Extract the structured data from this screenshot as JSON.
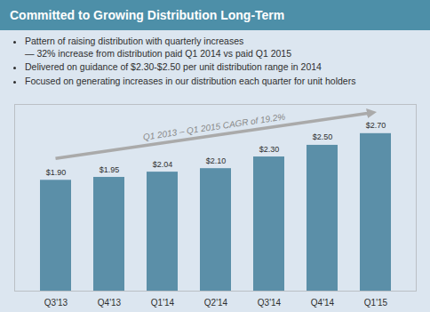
{
  "chart_data": {
    "type": "bar",
    "title": "Committed to Growing Distribution Long-Term",
    "annotations": [
      [
        "Pattern of raising distribution with quarterly increases",
        "— 32% increase from distribution paid Q1 2014 vs paid Q1 2015"
      ],
      [
        "Delivered on guidance of $2.30-$2.50 per unit distribution range in 2014"
      ],
      [
        "Focused on generating increases in our distribution each quarter for unit holders"
      ]
    ],
    "arrow_text": "Q1 2013 – Q1 2015 CAGR of 19.2%",
    "categories": [
      "Q3'13",
      "Q4'13",
      "Q1'14",
      "Q2'14",
      "Q3'14",
      "Q4'14",
      "Q1'15"
    ],
    "values": [
      1.9,
      1.95,
      2.04,
      2.1,
      2.3,
      2.5,
      2.7
    ],
    "value_labels": [
      "$1.90",
      "$1.95",
      "$2.04",
      "$2.10",
      "$2.30",
      "$2.50",
      "$2.70"
    ],
    "color": "#5b8fa8",
    "ylim": [
      0,
      3.2
    ],
    "data_labels": true,
    "tick_labels": "x"
  }
}
